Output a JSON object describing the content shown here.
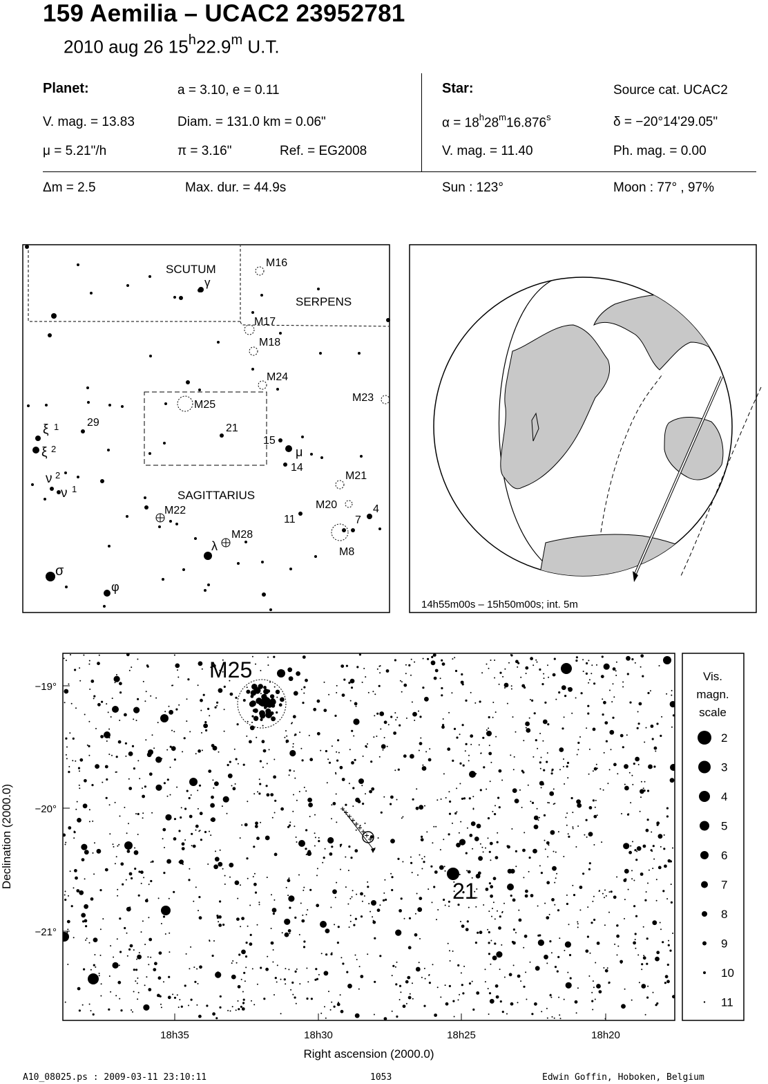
{
  "header": {
    "title": "159 Aemilia  –  UCAC2 23952781",
    "date": "2010 aug 26  15",
    "hour_unit": "h",
    "minutes": "22.9",
    "minute_unit": "m",
    "ut": " U.T."
  },
  "planet": {
    "heading": "Planet:",
    "orbit": "a = 3.10, e = 0.11",
    "vmag": "V. mag. = 13.83",
    "diam": "Diam. = 131.0 km = 0.06\"",
    "mu": "μ =  5.21\"/h",
    "pi": "π =  3.16\"",
    "ref": "Ref. = EG2008"
  },
  "star": {
    "heading": "Star:",
    "source": "Source cat.  UCAC2",
    "ra_prefix": "α = 18",
    "ra_h": "h",
    "ra_m_val": "28",
    "ra_m": "m",
    "ra_s_val": "16.876",
    "ra_s": "s",
    "dec": "δ = −20°14'29.05\"",
    "vmag": "V. mag. = 11.40",
    "phmag": "Ph. mag. =  0.00"
  },
  "event": {
    "dm": "Δm = 2.5",
    "maxdur": "Max. dur. = 44.9s",
    "sun": "Sun : 123°",
    "moon": "Moon :  77° , 97%"
  },
  "finder": {
    "constellations": [
      "SCUTUM",
      "SERPENS",
      "SAGITTARIUS"
    ],
    "labels": [
      {
        "t": "M16"
      },
      {
        "t": "M17"
      },
      {
        "t": "M18"
      },
      {
        "t": "M24"
      },
      {
        "t": "M23"
      },
      {
        "t": "M25"
      },
      {
        "t": "21"
      },
      {
        "t": "15"
      },
      {
        "t": "μ"
      },
      {
        "t": "14"
      },
      {
        "t": "M21"
      },
      {
        "t": "M20"
      },
      {
        "t": "4"
      },
      {
        "t": "7"
      },
      {
        "t": "11"
      },
      {
        "t": "M22"
      },
      {
        "t": "M28"
      },
      {
        "t": "λ"
      },
      {
        "t": "M8"
      },
      {
        "t": "σ"
      },
      {
        "t": "φ"
      },
      {
        "t": "29"
      },
      {
        "t": "ξ"
      },
      {
        "t": "1"
      },
      {
        "t": "ξ"
      },
      {
        "t": "2"
      },
      {
        "t": "ν"
      },
      {
        "t": "2"
      },
      {
        "t": "ν"
      },
      {
        "t": "1"
      },
      {
        "t": "γ"
      }
    ]
  },
  "globe": {
    "caption": "14h55m00s – 15h50m00s; int.  5m"
  },
  "detail": {
    "ylabel": "Declination (2000.0)",
    "xlabel": "Right ascension (2000.0)",
    "yticks": [
      "−19°",
      "−20°",
      "−21°"
    ],
    "xticks": [
      "18h35",
      "18h30",
      "18h25",
      "18h20"
    ],
    "cluster_label": "M25",
    "star_label": "21"
  },
  "legend": {
    "title": [
      "Vis.",
      "magn.",
      "scale"
    ],
    "mags": [
      "2",
      "3",
      "4",
      "5",
      "6",
      "7",
      "8",
      "9",
      "10",
      "11"
    ]
  },
  "footer": {
    "file": "A10_08025.ps : 2009-03-11 23:10:11",
    "number": "1053",
    "author": "Edwin Goffin, Hoboken, Belgium"
  }
}
